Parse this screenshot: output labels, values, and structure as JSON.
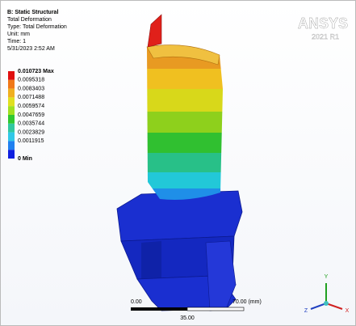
{
  "header": {
    "title": "B: Static Structural",
    "lines": [
      "Total Deformation",
      "Type: Total Deformation",
      "Unit: mm",
      "Time: 1",
      "5/31/2023 2:52 AM"
    ]
  },
  "legend": {
    "entries": [
      "0.010723 Max",
      "0.0095318",
      "0.0083403",
      "0.0071488",
      "0.0059574",
      "0.0047659",
      "0.0035744",
      "0.0023829",
      "0.0011915",
      "0 Min"
    ]
  },
  "logo": {
    "name": "ANSYS",
    "version": "2021 R1"
  },
  "scale_bar": {
    "start": "0.00",
    "end": "70.00 (mm)",
    "mid": "35.00"
  },
  "triad": {
    "y": "Y",
    "z": "Z",
    "x": "X"
  }
}
